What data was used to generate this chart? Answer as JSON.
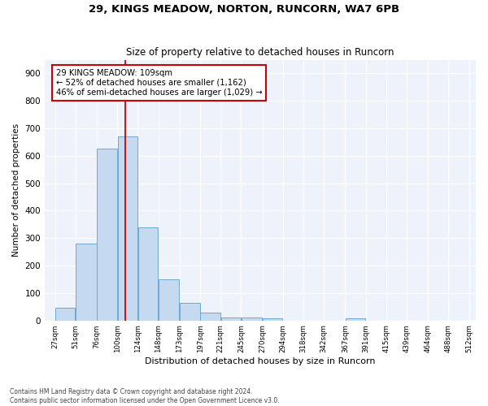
{
  "title1": "29, KINGS MEADOW, NORTON, RUNCORN, WA7 6PB",
  "title2": "Size of property relative to detached houses in Runcorn",
  "xlabel": "Distribution of detached houses by size in Runcorn",
  "ylabel": "Number of detached properties",
  "bar_color": "#c5d9f1",
  "bar_edge_color": "#6aaad4",
  "annotation_line_color": "#cc0000",
  "annotation_box_edge": "#cc0000",
  "background_color": "#eef2fb",
  "annotation_line1": "29 KINGS MEADOW: 109sqm",
  "annotation_line2": "← 52% of detached houses are smaller (1,162)",
  "annotation_line3": "46% of semi-detached houses are larger (1,029) →",
  "property_x": 109,
  "footnote": "Contains HM Land Registry data © Crown copyright and database right 2024.\nContains public sector information licensed under the Open Government Licence v3.0.",
  "categories": [
    "27sqm",
    "51sqm",
    "76sqm",
    "100sqm",
    "124sqm",
    "148sqm",
    "173sqm",
    "197sqm",
    "221sqm",
    "245sqm",
    "270sqm",
    "294sqm",
    "318sqm",
    "342sqm",
    "367sqm",
    "391sqm",
    "415sqm",
    "439sqm",
    "464sqm",
    "488sqm",
    "512sqm"
  ],
  "bar_left_edges": [
    27,
    51,
    76,
    100,
    124,
    148,
    173,
    197,
    221,
    245,
    270,
    294,
    318,
    342,
    367,
    391,
    415,
    439,
    464,
    488
  ],
  "bar_widths": [
    24,
    25,
    24,
    24,
    24,
    25,
    24,
    24,
    24,
    25,
    24,
    24,
    24,
    25,
    24,
    24,
    24,
    25,
    24,
    24
  ],
  "values": [
    45,
    280,
    625,
    670,
    340,
    150,
    65,
    30,
    10,
    10,
    8,
    0,
    0,
    0,
    8,
    0,
    0,
    0,
    0,
    0
  ],
  "ylim": [
    0,
    950
  ],
  "yticks": [
    0,
    100,
    200,
    300,
    400,
    500,
    600,
    700,
    800,
    900
  ],
  "xlim_left": 15,
  "xlim_right": 520
}
